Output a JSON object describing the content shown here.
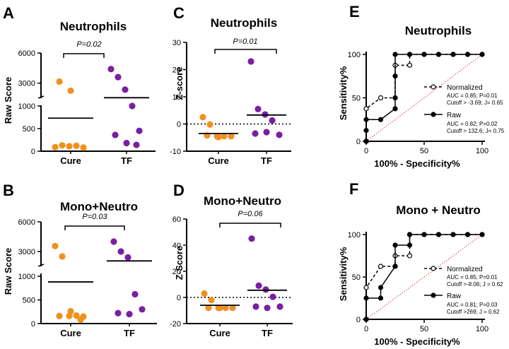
{
  "colors": {
    "cure": "#f0901e",
    "tf": "#7a1fa2",
    "chance": "#d04040"
  },
  "chart_data": [
    {
      "id": "A",
      "type": "scatter",
      "panel_label": "A",
      "title": "Neutrophils",
      "ylabel": "Raw Score",
      "categories": [
        "Cure",
        "TF"
      ],
      "y_axis": "broken",
      "lower_range": [
        0,
        1000
      ],
      "upper_range": [
        1500,
        6000
      ],
      "lower_ticks": [
        "0",
        "500",
        "1000"
      ],
      "upper_ticks": [
        "3000",
        "6000"
      ],
      "pvalue": "P=0.02",
      "series": [
        {
          "name": "Cure",
          "values": [
            90,
            130,
            110,
            120,
            80,
            3150,
            2250
          ],
          "mean": 730
        },
        {
          "name": "TF",
          "values": [
            4400,
            3600,
            2350,
            1000,
            450,
            360,
            180,
            140
          ],
          "mean": 1550
        }
      ]
    },
    {
      "id": "C",
      "type": "scatter",
      "panel_label": "C",
      "title": "Neutrophils",
      "ylabel": "Z-score",
      "categories": [
        "Cure",
        "TF"
      ],
      "ylim": [
        -10,
        30
      ],
      "yticks": [
        "-10",
        "0",
        "10",
        "20",
        "30"
      ],
      "zero_line": true,
      "pvalue": "P=0.01",
      "series": [
        {
          "name": "Cure",
          "values": [
            2.5,
            -0.2,
            -4.5,
            -4.5,
            -4.5,
            -4.2,
            -4.8
          ],
          "mean": -3.5
        },
        {
          "name": "TF",
          "values": [
            23,
            5.5,
            3.5,
            1.3,
            -4,
            -3.5,
            -3
          ],
          "mean": 3.3
        }
      ]
    },
    {
      "id": "B",
      "type": "scatter",
      "panel_label": "B",
      "title": "Mono+Neutro",
      "ylabel": "Raw Score",
      "categories": [
        "Cure",
        "TF"
      ],
      "y_axis": "broken",
      "lower_range": [
        0,
        1000
      ],
      "upper_range": [
        1500,
        6000
      ],
      "lower_ticks": [
        "0",
        "500",
        "1000"
      ],
      "upper_ticks": [
        "3000",
        "6000"
      ],
      "pvalue": "P=0.03",
      "series": [
        {
          "name": "Cure",
          "values": [
            3550,
            2500,
            160,
            170,
            150,
            160,
            260,
            80
          ],
          "mean": 880
        },
        {
          "name": "TF",
          "values": [
            4000,
            3000,
            2400,
            620,
            300,
            220,
            200
          ],
          "mean": 2050
        }
      ]
    },
    {
      "id": "D",
      "type": "scatter",
      "panel_label": "D",
      "title": "Mono+Neutro",
      "ylabel": "Z-Score",
      "categories": [
        "Cure",
        "TF"
      ],
      "ylim": [
        -20,
        60
      ],
      "yticks": [
        "-20",
        "0",
        "20",
        "40",
        "60"
      ],
      "zero_line": true,
      "pvalue": "P=0.06",
      "series": [
        {
          "name": "Cure",
          "values": [
            3,
            -2,
            -8,
            -8,
            -8,
            -8,
            -8
          ],
          "mean": -6
        },
        {
          "name": "TF",
          "values": [
            45,
            9,
            6,
            0.5,
            -7,
            -7,
            -8
          ],
          "mean": 5.5
        }
      ]
    },
    {
      "id": "E",
      "type": "line",
      "panel_label": "E",
      "title": "Neutrophils",
      "xlabel": "100% - Specificity%",
      "ylabel": "Sensitivity%",
      "xlim": [
        0,
        100
      ],
      "ylim": [
        0,
        100
      ],
      "xticks": [
        "0",
        "50",
        "100"
      ],
      "yticks": [
        "0",
        "50",
        "100"
      ],
      "series": [
        {
          "name": "Normalized",
          "style": "dashed-open",
          "stats": [
            "AUC = 0.85; P=0.01",
            "Cutoff > -3.69; J= 0.65"
          ],
          "x": [
            0,
            0,
            12.5,
            25,
            25,
            37.5,
            37.5,
            50,
            62.5,
            75,
            87.5,
            100
          ],
          "y": [
            0,
            37.5,
            50,
            50,
            87.5,
            87.5,
            100,
            100,
            100,
            100,
            100,
            100
          ]
        },
        {
          "name": "Raw",
          "style": "solid-filled",
          "stats": [
            "AUC = 0.82; P=0.02",
            "Cutoff > 132.6; J= 0.75"
          ],
          "x": [
            0,
            0,
            0,
            12.5,
            25,
            25,
            25,
            25,
            37.5,
            50,
            62.5,
            75,
            87.5,
            100
          ],
          "y": [
            0,
            12.5,
            25,
            25,
            37.5,
            50,
            75,
            100,
            100,
            100,
            100,
            100,
            100,
            100
          ]
        }
      ]
    },
    {
      "id": "F",
      "type": "line",
      "panel_label": "F",
      "title": "Mono + Neutro",
      "xlabel": "100% - Specificity%",
      "ylabel": "Sensitivity%",
      "xlim": [
        0,
        100
      ],
      "ylim": [
        0,
        100
      ],
      "xticks": [
        "0",
        "50",
        "100"
      ],
      "yticks": [
        "0",
        "50",
        "100"
      ],
      "series": [
        {
          "name": "Normalized",
          "style": "dashed-open",
          "stats": [
            "AUC = 0.85; P=0.01",
            "Cutoff >-8.06; J = 0.62"
          ],
          "x": [
            0,
            0,
            12.5,
            25,
            25,
            37.5,
            37.5,
            50,
            62.5,
            75,
            87.5,
            100
          ],
          "y": [
            0,
            37.5,
            62.5,
            62.5,
            75,
            75,
            100,
            100,
            100,
            100,
            100,
            100
          ]
        },
        {
          "name": "Raw",
          "style": "solid-filled",
          "stats": [
            "AUC = 0.81; P=0.03",
            "Cutoff >269; J = 0.62"
          ],
          "x": [
            0,
            0,
            12.5,
            12.5,
            25,
            25,
            37.5,
            37.5,
            50,
            62.5,
            75,
            87.5,
            100
          ],
          "y": [
            0,
            25,
            25,
            37.5,
            62.5,
            87.5,
            87.5,
            100,
            100,
            100,
            100,
            100,
            100
          ]
        }
      ]
    }
  ]
}
